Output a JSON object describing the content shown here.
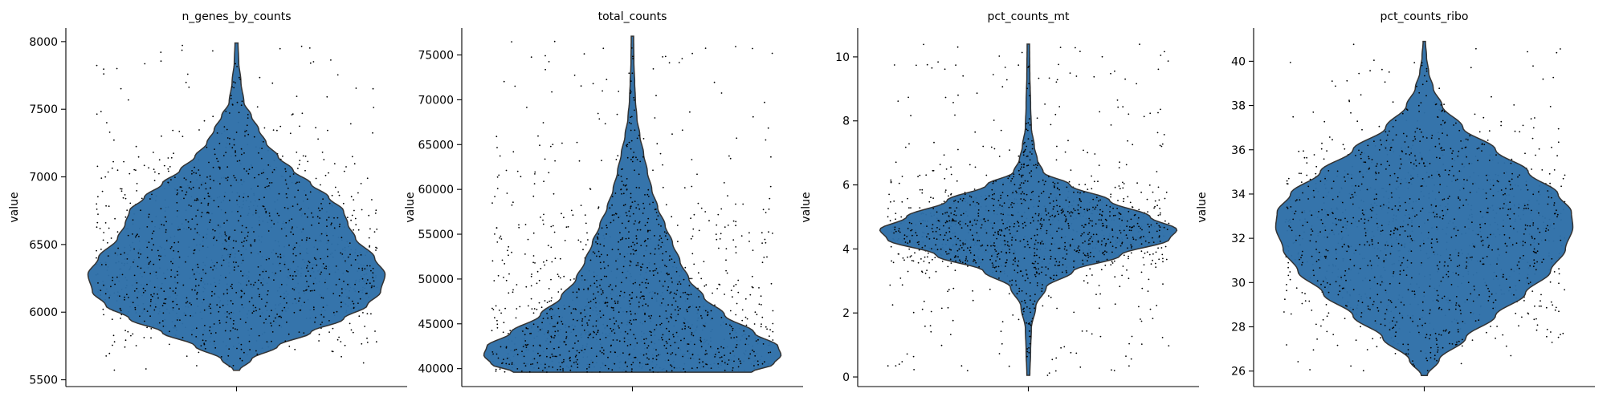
{
  "chart_data": [
    {
      "type": "violin",
      "title": "n_genes_by_counts",
      "ylabel": "value",
      "ylim": [
        5450,
        8100
      ],
      "yticks": [
        5500,
        6000,
        6500,
        7000,
        7500,
        8000
      ],
      "ytick_labels": [
        "5500",
        "6000",
        "6500",
        "7000",
        "7500",
        "8000"
      ],
      "min": 5570,
      "max": 7990,
      "profile": [
        [
          5570,
          0.02
        ],
        [
          5650,
          0.1
        ],
        [
          5750,
          0.28
        ],
        [
          5850,
          0.5
        ],
        [
          5950,
          0.72
        ],
        [
          6050,
          0.88
        ],
        [
          6150,
          0.97
        ],
        [
          6280,
          1.0
        ],
        [
          6400,
          0.93
        ],
        [
          6550,
          0.8
        ],
        [
          6650,
          0.75
        ],
        [
          6750,
          0.72
        ],
        [
          6850,
          0.62
        ],
        [
          6950,
          0.5
        ],
        [
          7050,
          0.38
        ],
        [
          7150,
          0.28
        ],
        [
          7250,
          0.2
        ],
        [
          7350,
          0.15
        ],
        [
          7450,
          0.1
        ],
        [
          7550,
          0.05
        ],
        [
          7700,
          0.03
        ],
        [
          7850,
          0.015
        ],
        [
          7990,
          0.01
        ]
      ],
      "points": 900,
      "color": "#2e6fa8"
    },
    {
      "type": "violin",
      "title": "total_counts",
      "ylabel": "value",
      "ylim": [
        38000,
        78000
      ],
      "yticks": [
        40000,
        45000,
        50000,
        55000,
        60000,
        65000,
        70000,
        75000
      ],
      "ytick_labels": [
        "40000",
        "45000",
        "50000",
        "55000",
        "60000",
        "65000",
        "70000",
        "75000"
      ],
      "min": 39600,
      "max": 77100,
      "profile": [
        [
          39600,
          0.8
        ],
        [
          40500,
          0.95
        ],
        [
          41500,
          1.0
        ],
        [
          42500,
          0.98
        ],
        [
          44000,
          0.82
        ],
        [
          46000,
          0.62
        ],
        [
          48000,
          0.48
        ],
        [
          50000,
          0.38
        ],
        [
          52000,
          0.32
        ],
        [
          54000,
          0.27
        ],
        [
          56000,
          0.22
        ],
        [
          58000,
          0.17
        ],
        [
          60000,
          0.13
        ],
        [
          62000,
          0.1
        ],
        [
          64000,
          0.075
        ],
        [
          66000,
          0.05
        ],
        [
          68000,
          0.03
        ],
        [
          70000,
          0.02
        ],
        [
          72000,
          0.015
        ],
        [
          74000,
          0.01
        ],
        [
          77100,
          0.008
        ]
      ],
      "points": 900,
      "color": "#2e6fa8"
    },
    {
      "type": "violin",
      "title": "pct_counts_mt",
      "ylabel": "value",
      "ylim": [
        -0.3,
        10.9
      ],
      "yticks": [
        0,
        2,
        4,
        6,
        8,
        10
      ],
      "ytick_labels": [
        "0",
        "2",
        "4",
        "6",
        "8",
        "10"
      ],
      "min": 0.05,
      "max": 10.4,
      "profile": [
        [
          0.05,
          0.01
        ],
        [
          0.8,
          0.015
        ],
        [
          1.5,
          0.02
        ],
        [
          2.2,
          0.05
        ],
        [
          2.8,
          0.12
        ],
        [
          3.3,
          0.3
        ],
        [
          3.8,
          0.62
        ],
        [
          4.3,
          0.95
        ],
        [
          4.6,
          1.0
        ],
        [
          5.0,
          0.82
        ],
        [
          5.5,
          0.55
        ],
        [
          6.0,
          0.28
        ],
        [
          6.4,
          0.1
        ],
        [
          6.8,
          0.06
        ],
        [
          7.2,
          0.04
        ],
        [
          7.8,
          0.02
        ],
        [
          8.5,
          0.015
        ],
        [
          9.5,
          0.01
        ],
        [
          10.4,
          0.008
        ]
      ],
      "points": 900,
      "color": "#2e6fa8"
    },
    {
      "type": "violin",
      "title": "pct_counts_ribo",
      "ylabel": "value",
      "ylim": [
        25.3,
        41.5
      ],
      "yticks": [
        26,
        28,
        30,
        32,
        34,
        36,
        38,
        40
      ],
      "ytick_labels": [
        "26",
        "28",
        "30",
        "32",
        "34",
        "36",
        "38",
        "40"
      ],
      "min": 25.8,
      "max": 40.9,
      "profile": [
        [
          25.8,
          0.02
        ],
        [
          26.5,
          0.1
        ],
        [
          27.5,
          0.28
        ],
        [
          28.5,
          0.48
        ],
        [
          29.5,
          0.68
        ],
        [
          30.5,
          0.85
        ],
        [
          31.5,
          0.95
        ],
        [
          32.5,
          1.0
        ],
        [
          33.2,
          0.99
        ],
        [
          34,
          0.9
        ],
        [
          35,
          0.7
        ],
        [
          36,
          0.48
        ],
        [
          37,
          0.26
        ],
        [
          38,
          0.12
        ],
        [
          38.8,
          0.06
        ],
        [
          39.5,
          0.03
        ],
        [
          40.2,
          0.015
        ],
        [
          40.9,
          0.008
        ]
      ],
      "points": 900,
      "color": "#2e6fa8"
    }
  ]
}
